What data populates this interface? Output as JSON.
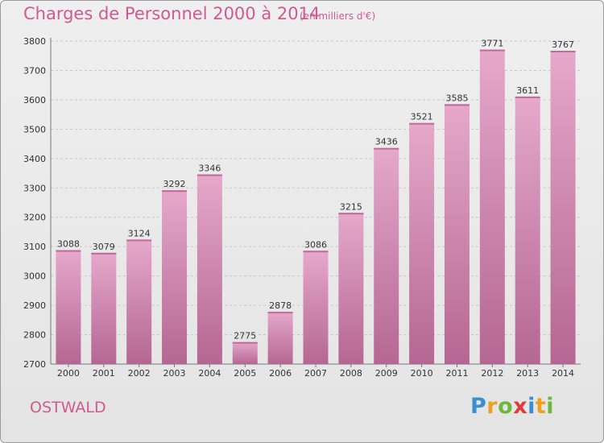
{
  "chart_data": {
    "type": "bar",
    "title": "Charges de Personnel 2000 à 2014",
    "subtitle": "(en milliers d'€)",
    "categories": [
      "2000",
      "2001",
      "2002",
      "2003",
      "2004",
      "2005",
      "2006",
      "2007",
      "2008",
      "2009",
      "2010",
      "2011",
      "2012",
      "2013",
      "2014"
    ],
    "values": [
      3088,
      3079,
      3124,
      3292,
      3346,
      2775,
      2878,
      3086,
      3215,
      3436,
      3521,
      3585,
      3771,
      3611,
      3767
    ],
    "ylim": [
      2700,
      3800
    ],
    "yticks": [
      2700,
      2800,
      2900,
      3000,
      3100,
      3200,
      3300,
      3400,
      3500,
      3600,
      3700,
      3800
    ],
    "xlabel": "",
    "ylabel": "",
    "grid": "horizontal dashed",
    "bar_color": "#d27ab0",
    "bar_color_light": "#e6a8cb",
    "bar_color_dark": "#b46792"
  },
  "footer": {
    "city": "OSTWALD",
    "logo_letters": [
      {
        "char": "P",
        "color": "#3a8fd0"
      },
      {
        "char": "r",
        "color": "#f0a020"
      },
      {
        "char": "o",
        "color": "#6db83a"
      },
      {
        "char": "x",
        "color": "#e03a3a"
      },
      {
        "char": "i",
        "color": "#3a8fd0"
      },
      {
        "char": "t",
        "color": "#f0a020"
      },
      {
        "char": "i",
        "color": "#6db83a"
      }
    ]
  },
  "colors": {
    "accent": "#d05a8e"
  }
}
